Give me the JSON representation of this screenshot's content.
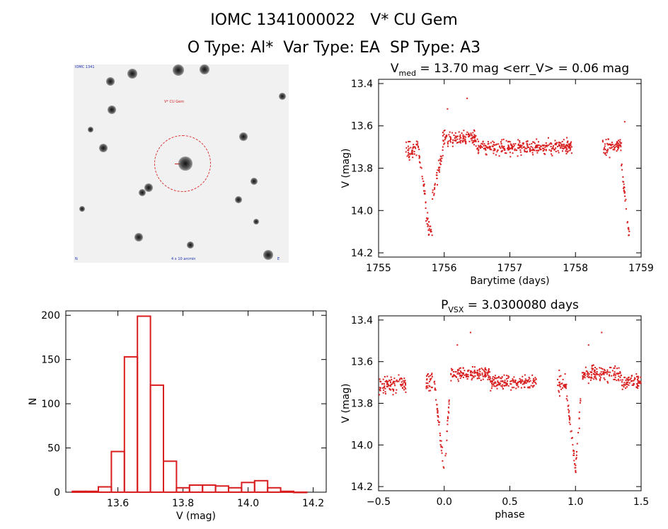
{
  "header": {
    "line1": "IOMC 1341000022   V* CU Gem",
    "line2": "O Type: Al*  Var Type: EA  SP Type: A3"
  },
  "image_panel": {
    "label_topleft": "IOMC 1341",
    "label_target": "V* CU Gem",
    "label_bottom": "4 x 10 arcmin",
    "label_bl": "N",
    "label_br": "E"
  },
  "colors": {
    "data": "#d81e1e",
    "hist": "#d81e1e",
    "axis": "#000000"
  },
  "chart_data": [
    {
      "id": "lightcurve",
      "type": "scatter",
      "title_main": "V",
      "title_sub": "med",
      "title_rest": " = 13.70 mag <err_V> = 0.06 mag",
      "xlabel": "Barytime (days)",
      "ylabel": "V (mag)",
      "xlim": [
        1755,
        1759
      ],
      "ylim": [
        14.22,
        13.38
      ],
      "xticks": [
        1755,
        1756,
        1757,
        1758,
        1759
      ],
      "yticks": [
        13.4,
        13.6,
        13.8,
        14.0,
        14.2
      ],
      "ytick_labels": [
        "13.4",
        "13.6",
        "13.8",
        "14.0",
        "14.2"
      ],
      "segments": [
        {
          "x0": 1755.4,
          "x1": 1755.62,
          "median": 13.71,
          "spread": 0.045
        },
        {
          "x0": 1755.62,
          "x1": 1755.72,
          "start": 13.74,
          "end": 13.96,
          "spread": 0.03
        },
        {
          "x0": 1755.72,
          "x1": 1755.82,
          "start": 14.03,
          "end": 14.13,
          "spread": 0.04
        },
        {
          "x0": 1755.82,
          "x1": 1755.98,
          "start": 13.93,
          "end": 13.72,
          "spread": 0.04
        },
        {
          "x0": 1755.98,
          "x1": 1756.5,
          "median": 13.66,
          "spread": 0.035
        },
        {
          "x0": 1756.5,
          "x1": 1757.95,
          "median": 13.7,
          "spread": 0.035
        },
        {
          "x0": 1758.4,
          "x1": 1758.7,
          "median": 13.7,
          "spread": 0.04
        },
        {
          "x0": 1758.7,
          "x1": 1758.82,
          "start": 13.78,
          "end": 14.12,
          "spread": 0.03
        }
      ],
      "outliers": [
        [
          1756.05,
          13.52
        ],
        [
          1756.35,
          13.47
        ],
        [
          1758.75,
          13.58
        ]
      ]
    },
    {
      "id": "histogram",
      "type": "bar",
      "xlabel": "V (mag)",
      "ylabel": "N",
      "xlim": [
        13.44,
        14.24
      ],
      "ylim": [
        0,
        205
      ],
      "xticks": [
        13.6,
        13.8,
        14.0,
        14.2
      ],
      "xtick_labels": [
        "13.6",
        "13.8",
        "14.0",
        "14.2"
      ],
      "yticks": [
        0,
        50,
        100,
        150,
        200
      ],
      "bin_width": 0.04,
      "bins_left": [
        13.46,
        13.5,
        13.54,
        13.58,
        13.62,
        13.66,
        13.7,
        13.74,
        13.78,
        13.82,
        13.86,
        13.9,
        13.94,
        13.98,
        14.02,
        14.06,
        14.1,
        14.14
      ],
      "values": [
        1,
        1,
        6,
        46,
        153,
        199,
        121,
        35,
        5,
        8,
        8,
        7,
        5,
        11,
        13,
        5,
        1,
        0
      ]
    },
    {
      "id": "phased",
      "type": "scatter",
      "title_main": "P",
      "title_sub": "VSX",
      "title_rest": " = 3.0300080 days",
      "xlabel": "phase",
      "ylabel": "V (mag)",
      "xlim": [
        -0.5,
        1.5
      ],
      "ylim": [
        14.22,
        13.38
      ],
      "xticks": [
        -0.5,
        0.0,
        0.5,
        1.0,
        1.5
      ],
      "xtick_labels": [
        "−0.5",
        "0.0",
        "0.5",
        "1.0",
        "1.5"
      ],
      "yticks": [
        13.4,
        13.6,
        13.8,
        14.0,
        14.2
      ],
      "ytick_labels": [
        "13.4",
        "13.6",
        "13.8",
        "14.0",
        "14.2"
      ],
      "segments": [
        {
          "x0": -0.5,
          "x1": -0.29,
          "median": 13.71,
          "spread": 0.04
        },
        {
          "x0": -0.14,
          "x1": -0.07,
          "median": 13.7,
          "spread": 0.045
        },
        {
          "x0": -0.07,
          "x1": 0.0,
          "start": 13.74,
          "end": 14.12,
          "spread": 0.03
        },
        {
          "x0": 0.0,
          "x1": 0.04,
          "start": 14.12,
          "end": 13.78,
          "spread": 0.035
        },
        {
          "x0": 0.05,
          "x1": 0.35,
          "median": 13.66,
          "spread": 0.035
        },
        {
          "x0": 0.35,
          "x1": 0.7,
          "median": 13.7,
          "spread": 0.035
        },
        {
          "x0": 0.86,
          "x1": 0.93,
          "median": 13.7,
          "spread": 0.045
        },
        {
          "x0": 0.93,
          "x1": 1.0,
          "start": 13.74,
          "end": 14.12,
          "spread": 0.03
        },
        {
          "x0": 1.0,
          "x1": 1.04,
          "start": 14.12,
          "end": 13.78,
          "spread": 0.035
        },
        {
          "x0": 1.05,
          "x1": 1.35,
          "median": 13.66,
          "spread": 0.035
        },
        {
          "x0": 1.35,
          "x1": 1.5,
          "median": 13.7,
          "spread": 0.035
        }
      ],
      "outliers": [
        [
          0.1,
          13.52
        ],
        [
          0.2,
          13.46
        ],
        [
          1.1,
          13.52
        ],
        [
          1.2,
          13.46
        ]
      ]
    }
  ]
}
